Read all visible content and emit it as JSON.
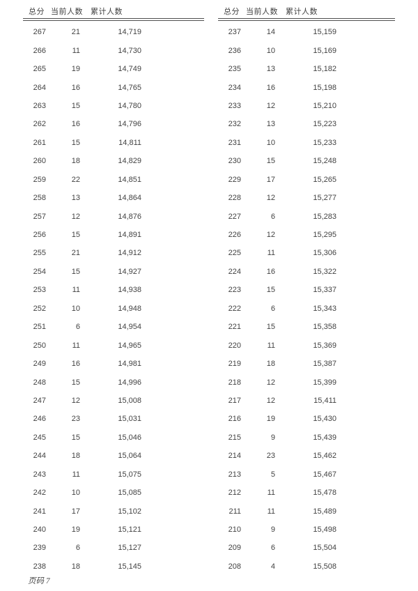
{
  "footer": {
    "label": "页码 7"
  },
  "tables": [
    {
      "name": "left",
      "headers": [
        "总分",
        "当前人数",
        "累计人数"
      ],
      "columns": [
        "total-score",
        "current-count",
        "cumulative-count"
      ],
      "rows": [
        [
          "267",
          "21",
          "14,719"
        ],
        [
          "266",
          "11",
          "14,730"
        ],
        [
          "265",
          "19",
          "14,749"
        ],
        [
          "264",
          "16",
          "14,765"
        ],
        [
          "263",
          "15",
          "14,780"
        ],
        [
          "262",
          "16",
          "14,796"
        ],
        [
          "261",
          "15",
          "14,811"
        ],
        [
          "260",
          "18",
          "14,829"
        ],
        [
          "259",
          "22",
          "14,851"
        ],
        [
          "258",
          "13",
          "14,864"
        ],
        [
          "257",
          "12",
          "14,876"
        ],
        [
          "256",
          "15",
          "14,891"
        ],
        [
          "255",
          "21",
          "14,912"
        ],
        [
          "254",
          "15",
          "14,927"
        ],
        [
          "253",
          "11",
          "14,938"
        ],
        [
          "252",
          "10",
          "14,948"
        ],
        [
          "251",
          "6",
          "14,954"
        ],
        [
          "250",
          "11",
          "14,965"
        ],
        [
          "249",
          "16",
          "14,981"
        ],
        [
          "248",
          "15",
          "14,996"
        ],
        [
          "247",
          "12",
          "15,008"
        ],
        [
          "246",
          "23",
          "15,031"
        ],
        [
          "245",
          "15",
          "15,046"
        ],
        [
          "244",
          "18",
          "15,064"
        ],
        [
          "243",
          "11",
          "15,075"
        ],
        [
          "242",
          "10",
          "15,085"
        ],
        [
          "241",
          "17",
          "15,102"
        ],
        [
          "240",
          "19",
          "15,121"
        ],
        [
          "239",
          "6",
          "15,127"
        ],
        [
          "238",
          "18",
          "15,145"
        ]
      ]
    },
    {
      "name": "right",
      "headers": [
        "总分",
        "当前人数",
        "累计人数"
      ],
      "columns": [
        "total-score",
        "current-count",
        "cumulative-count"
      ],
      "rows": [
        [
          "237",
          "14",
          "15,159"
        ],
        [
          "236",
          "10",
          "15,169"
        ],
        [
          "235",
          "13",
          "15,182"
        ],
        [
          "234",
          "16",
          "15,198"
        ],
        [
          "233",
          "12",
          "15,210"
        ],
        [
          "232",
          "13",
          "15,223"
        ],
        [
          "231",
          "10",
          "15,233"
        ],
        [
          "230",
          "15",
          "15,248"
        ],
        [
          "229",
          "17",
          "15,265"
        ],
        [
          "228",
          "12",
          "15,277"
        ],
        [
          "227",
          "6",
          "15,283"
        ],
        [
          "226",
          "12",
          "15,295"
        ],
        [
          "225",
          "11",
          "15,306"
        ],
        [
          "224",
          "16",
          "15,322"
        ],
        [
          "223",
          "15",
          "15,337"
        ],
        [
          "222",
          "6",
          "15,343"
        ],
        [
          "221",
          "15",
          "15,358"
        ],
        [
          "220",
          "11",
          "15,369"
        ],
        [
          "219",
          "18",
          "15,387"
        ],
        [
          "218",
          "12",
          "15,399"
        ],
        [
          "217",
          "12",
          "15,411"
        ],
        [
          "216",
          "19",
          "15,430"
        ],
        [
          "215",
          "9",
          "15,439"
        ],
        [
          "214",
          "23",
          "15,462"
        ],
        [
          "213",
          "5",
          "15,467"
        ],
        [
          "212",
          "11",
          "15,478"
        ],
        [
          "211",
          "11",
          "15,489"
        ],
        [
          "210",
          "9",
          "15,498"
        ],
        [
          "209",
          "6",
          "15,504"
        ],
        [
          "208",
          "4",
          "15,508"
        ]
      ]
    }
  ]
}
